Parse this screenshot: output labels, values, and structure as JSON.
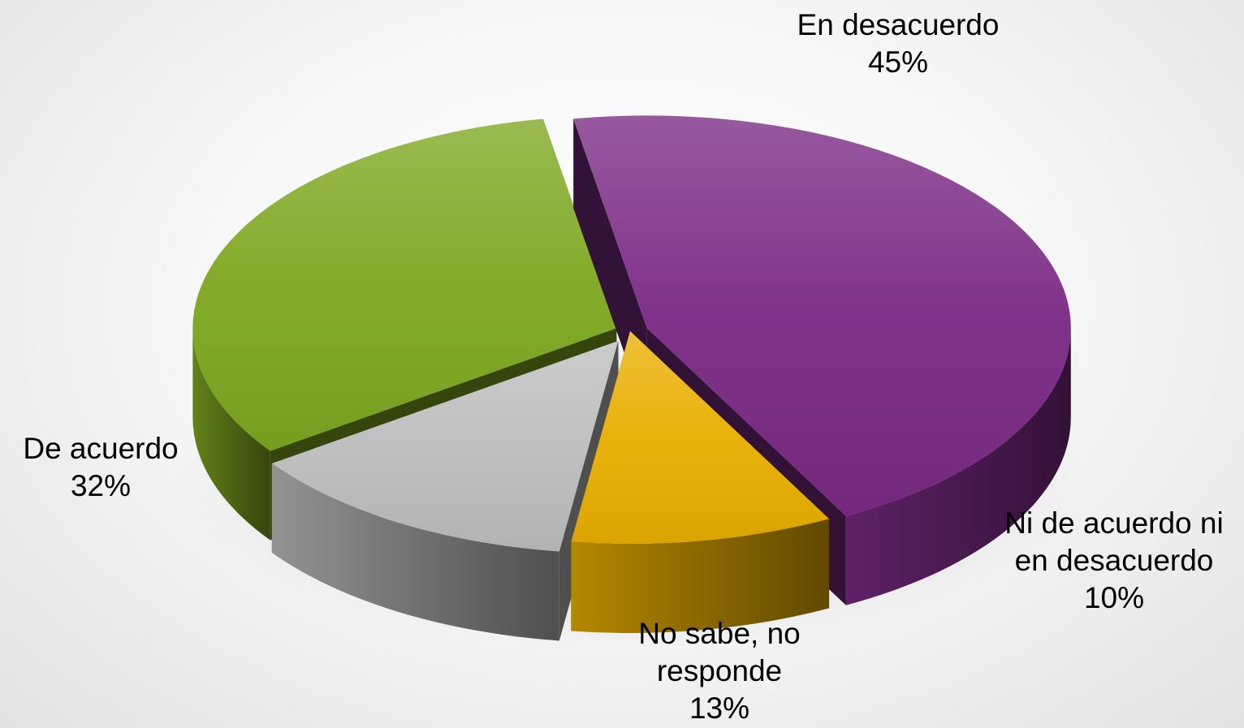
{
  "chart_data": {
    "type": "pie",
    "title": "",
    "legend": "none",
    "slices": [
      {
        "label_lines": [
          "En desacuerdo"
        ],
        "value_label": "45%",
        "value": 45,
        "color": "#7a2a84"
      },
      {
        "label_lines": [
          "Ni de acuerdo ni",
          "en desacuerdo"
        ],
        "value_label": "10%",
        "value": 10,
        "color": "#e8ae00"
      },
      {
        "label_lines": [
          "No sabe, no",
          "responde"
        ],
        "value_label": "13%",
        "value": 13,
        "color": "#bdbdbd"
      },
      {
        "label_lines": [
          "De acuerdo"
        ],
        "value_label": "32%",
        "value": 32,
        "color": "#7ea720"
      }
    ]
  }
}
